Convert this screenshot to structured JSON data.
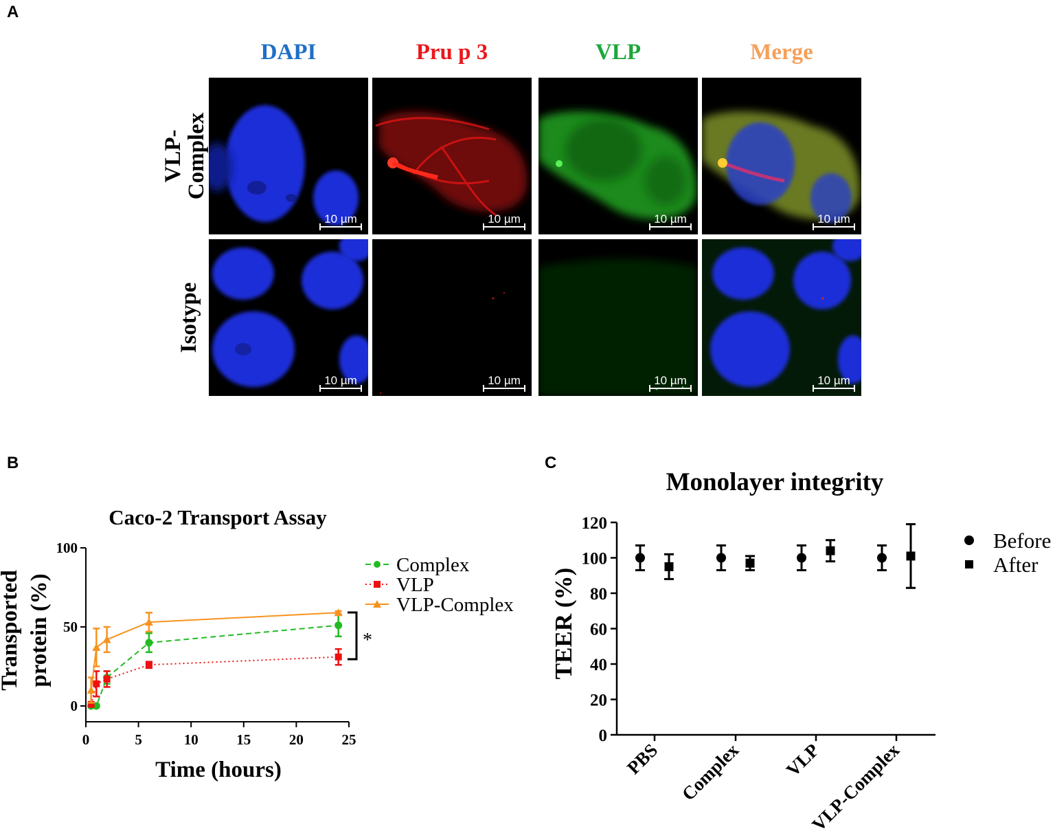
{
  "panels": {
    "a": "A",
    "b": "B",
    "c": "C"
  },
  "micrographs": {
    "columns": [
      {
        "label": "DAPI",
        "color": "#1f6fc6"
      },
      {
        "label": "Pru p 3",
        "color": "#e8191c"
      },
      {
        "label": "VLP",
        "color": "#1aa83a"
      },
      {
        "label": "Merge",
        "color": "#f5a05a"
      }
    ],
    "rows": [
      {
        "label_line1": "VLP-",
        "label_line2": "Complex"
      },
      {
        "label_line1": "Isotype",
        "label_line2": ""
      }
    ],
    "scale_bar": "10 µm"
  },
  "chart_data": [
    {
      "type": "line",
      "title": "Caco-2 Transport Assay",
      "xlabel": "Time (hours)",
      "ylabel": "Transported protein (%)",
      "ylabel_line1": "Transported",
      "ylabel_line2": "protein (%)",
      "xlim": [
        0,
        25
      ],
      "ylim": [
        0,
        100
      ],
      "xticks": [
        "0",
        "5",
        "10",
        "15",
        "20",
        "25"
      ],
      "yticks": [
        "0",
        "50",
        "100"
      ],
      "legend_position": "right",
      "significance": "*",
      "series": [
        {
          "name": "Complex",
          "color": "#22bb22",
          "marker": "circle",
          "line": "dashed",
          "x": [
            0.5,
            1,
            2,
            6,
            24
          ],
          "y": [
            0,
            0,
            18,
            40,
            51
          ],
          "err": [
            1,
            1,
            4,
            6,
            7
          ]
        },
        {
          "name": "VLP",
          "color": "#ee1111",
          "marker": "square",
          "line": "dotted",
          "x": [
            0.5,
            1,
            2,
            6,
            24
          ],
          "y": [
            1,
            14,
            17,
            26,
            31
          ],
          "err": [
            1,
            8,
            5,
            2,
            5
          ]
        },
        {
          "name": "VLP-Complex",
          "color": "#f7931e",
          "marker": "triangle",
          "line": "solid",
          "x": [
            0.5,
            1,
            2,
            6,
            24
          ],
          "y": [
            10,
            37,
            42,
            53,
            59
          ],
          "err": [
            8,
            12,
            8,
            6,
            1
          ]
        }
      ]
    },
    {
      "type": "scatter",
      "title": "Monolayer integrity",
      "ylabel": "TEER (%)",
      "ylim": [
        0,
        120
      ],
      "yticks": [
        "0",
        "20",
        "40",
        "60",
        "80",
        "100",
        "120"
      ],
      "categories": [
        "PBS",
        "Complex",
        "VLP",
        "VLP-Complex"
      ],
      "legend_position": "right",
      "series": [
        {
          "name": "Before",
          "marker": "circle",
          "color": "#000000",
          "values": [
            100,
            100,
            100,
            100
          ],
          "err": [
            7,
            7,
            7,
            7
          ]
        },
        {
          "name": "After",
          "marker": "square",
          "color": "#000000",
          "values": [
            95,
            97,
            104,
            101
          ],
          "err": [
            7,
            4,
            6,
            18
          ]
        }
      ]
    }
  ]
}
